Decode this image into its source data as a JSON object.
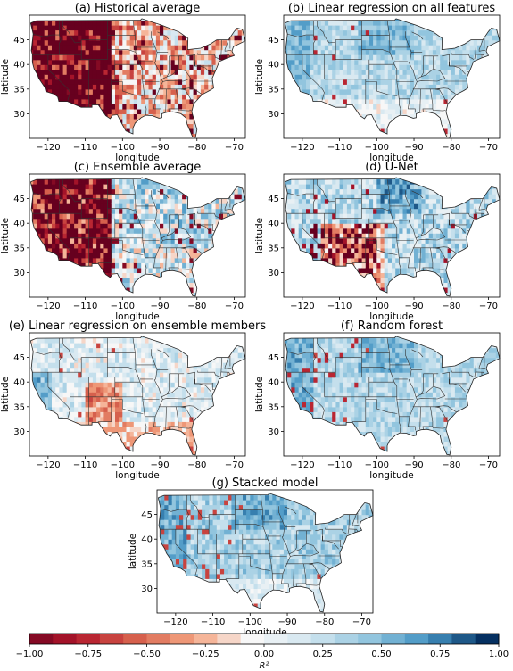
{
  "figure": {
    "panels": [
      {
        "id": "a",
        "title": "(a) Historical average",
        "pattern": "historical"
      },
      {
        "id": "b",
        "title": "(b) Linear regression on all features",
        "pattern": "linreg_all"
      },
      {
        "id": "c",
        "title": "(c) Ensemble average",
        "pattern": "ensemble_avg"
      },
      {
        "id": "d",
        "title": "(d) U-Net",
        "pattern": "unet"
      },
      {
        "id": "e",
        "title": "(e) Linear regression on ensemble members",
        "pattern": "linreg_ens"
      },
      {
        "id": "f",
        "title": "(f) Random forest",
        "pattern": "random_forest"
      },
      {
        "id": "g",
        "title": "(g) Stacked model",
        "pattern": "stacked"
      }
    ],
    "x_label": "longitude",
    "y_label": "latitude",
    "x_ticks": [
      "−120",
      "−110",
      "−100",
      "−90",
      "−80",
      "−70"
    ],
    "y_ticks": [
      "45",
      "40",
      "35",
      "30"
    ],
    "colorbar": {
      "label": "R²",
      "ticks": [
        "−1.00",
        "−0.75",
        "−0.50",
        "−0.25",
        "0.00",
        "0.25",
        "0.50",
        "0.75",
        "1.00"
      ],
      "range": [
        -1,
        1
      ],
      "colormap": "RdBu (red = negative, white = 0, blue = positive)"
    }
  }
}
